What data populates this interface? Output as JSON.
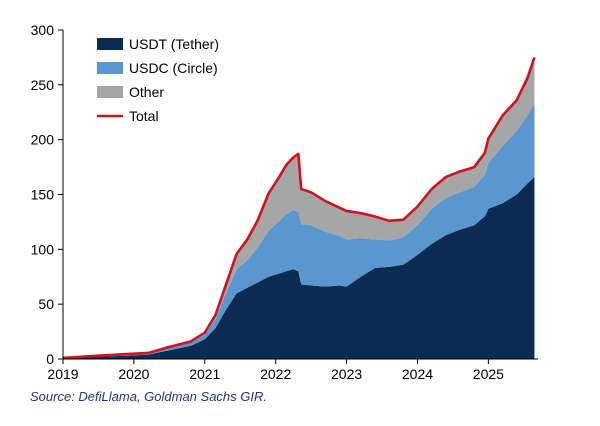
{
  "chart_data": {
    "type": "area",
    "title": "",
    "xlabel": "",
    "ylabel": "",
    "stacked": true,
    "x_ticks": [
      "2019",
      "2020",
      "2021",
      "2022",
      "2023",
      "2024",
      "2025"
    ],
    "y_ticks": [
      "0",
      "50",
      "100",
      "150",
      "200",
      "250",
      "300"
    ],
    "xlim": [
      2019.0,
      2025.7
    ],
    "ylim": [
      0,
      300
    ],
    "grid": false,
    "legend_position": "top-left",
    "x": [
      2019.0,
      2019.5,
      2019.9,
      2020.2,
      2020.5,
      2020.8,
      2021.0,
      2021.15,
      2021.3,
      2021.45,
      2021.6,
      2021.75,
      2021.9,
      2022.05,
      2022.15,
      2022.25,
      2022.32,
      2022.36,
      2022.5,
      2022.7,
      2022.9,
      2023.0,
      2023.2,
      2023.4,
      2023.6,
      2023.8,
      2024.0,
      2024.2,
      2024.4,
      2024.6,
      2024.8,
      2024.95,
      2025.0,
      2025.2,
      2025.4,
      2025.55,
      2025.65
    ],
    "series": [
      {
        "name": "USDT (Tether)",
        "color": "#0b2c52",
        "values": [
          0.5,
          2,
          3,
          4,
          8,
          12,
          18,
          28,
          45,
          60,
          65,
          70,
          75,
          78,
          80,
          82,
          80,
          68,
          67,
          66,
          67,
          66,
          75,
          83,
          84,
          86,
          95,
          105,
          113,
          118,
          122,
          130,
          137,
          142,
          150,
          160,
          166
        ]
      },
      {
        "name": "USDC (Circle)",
        "color": "#5b97cf",
        "values": [
          0.3,
          0.8,
          1,
          1,
          2,
          3,
          4,
          8,
          15,
          22,
          25,
          32,
          42,
          48,
          52,
          54,
          54,
          55,
          55,
          50,
          45,
          43,
          35,
          26,
          24,
          25,
          27,
          32,
          34,
          34,
          35,
          38,
          42,
          52,
          58,
          62,
          67
        ]
      },
      {
        "name": "Other",
        "color": "#a6a6a6",
        "values": [
          0.2,
          0.2,
          0.5,
          0.5,
          1,
          1,
          2,
          4,
          8,
          14,
          19,
          25,
          34,
          40,
          45,
          48,
          53,
          32,
          30,
          28,
          26,
          26,
          23,
          21,
          18,
          16,
          17,
          18,
          19,
          19,
          18,
          20,
          22,
          28,
          28,
          34,
          42
        ]
      },
      {
        "name": "Total",
        "color": "#d0121b",
        "values": [
          1,
          3,
          4.5,
          5.5,
          11,
          16,
          24,
          40,
          68,
          96,
          109,
          127,
          151,
          166,
          177,
          184,
          187,
          155,
          152,
          144,
          138,
          135,
          133,
          130,
          126,
          127,
          139,
          155,
          166,
          171,
          175,
          188,
          201,
          222,
          236,
          256,
          275
        ]
      }
    ],
    "source_note": "Source: DefiLlama, Goldman Sachs GIR."
  }
}
